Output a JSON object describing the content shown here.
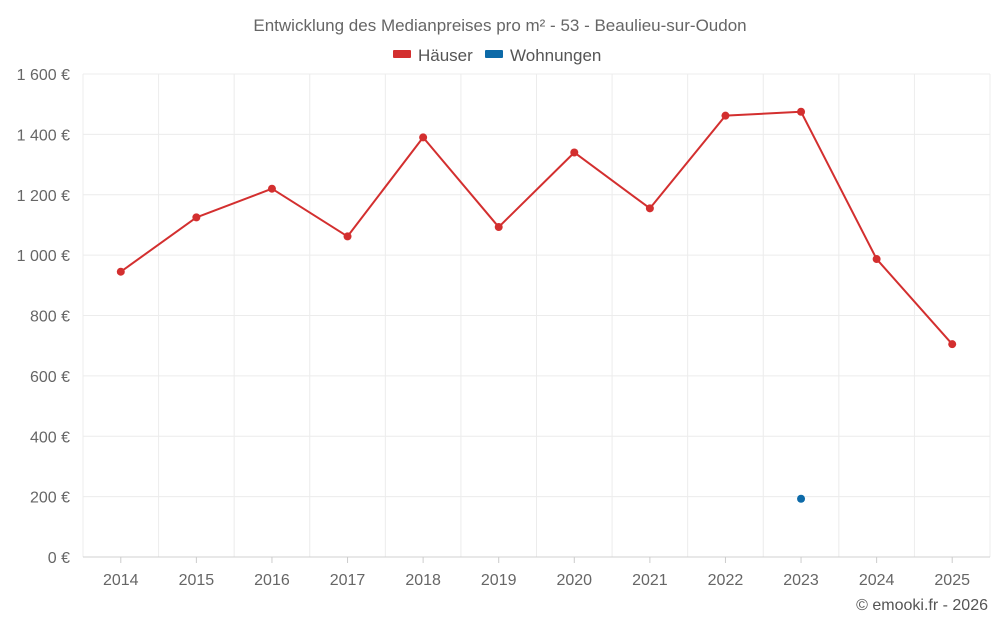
{
  "chart_data": {
    "type": "line",
    "title": "Entwicklung des Medianpreises pro m² - 53 - Beaulieu-sur-Oudon",
    "categories": [
      "2014",
      "2015",
      "2016",
      "2017",
      "2018",
      "2019",
      "2020",
      "2021",
      "2022",
      "2023",
      "2024",
      "2025"
    ],
    "ylim": [
      0,
      1600
    ],
    "yticks": [
      0,
      200,
      400,
      600,
      800,
      1000,
      1200,
      1400,
      1600
    ],
    "ytick_labels": [
      "0 €",
      "200 €",
      "400 €",
      "600 €",
      "800 €",
      "1 000 €",
      "1 200 €",
      "1 400 €",
      "1 600 €"
    ],
    "xlabel": "",
    "ylabel": "",
    "grid": true,
    "legend_position": "top-center",
    "series": [
      {
        "name": "Häuser",
        "color": "#d32f2f",
        "values": [
          945,
          1125,
          1220,
          1062,
          1390,
          1093,
          1340,
          1155,
          1462,
          1475,
          987,
          705
        ]
      },
      {
        "name": "Wohnungen",
        "color": "#0d6aa8",
        "values": [
          null,
          null,
          null,
          null,
          null,
          null,
          null,
          null,
          null,
          193,
          null,
          null
        ]
      }
    ]
  },
  "credit": "© emooki.fr - 2026"
}
